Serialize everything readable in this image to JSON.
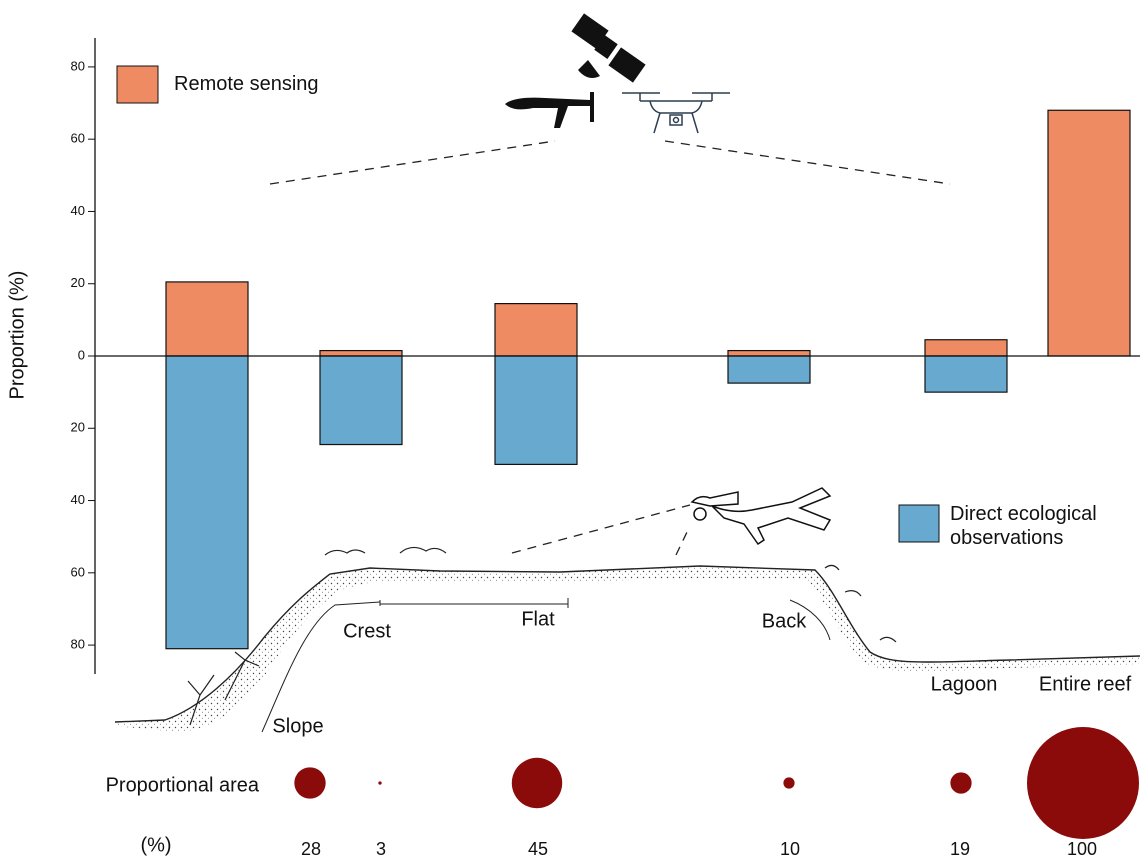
{
  "chart_data": {
    "type": "bar",
    "y_label": "Proportion (%)",
    "categories": [
      "Slope",
      "Crest",
      "Flat",
      "Back",
      "Lagoon",
      "Entire reef"
    ],
    "series": [
      {
        "name": "Remote sensing",
        "color": "#ee8b63",
        "values": [
          20.5,
          1.5,
          14.5,
          1.5,
          4.5,
          68
        ]
      },
      {
        "name": "Direct ecological observations",
        "color": "#67a9cf",
        "values": [
          -81,
          -24.5,
          -30,
          -7.5,
          -10,
          null
        ]
      }
    ],
    "ylim": [
      -88,
      88
    ],
    "yticks": [
      {
        "value": -80,
        "label": "80"
      },
      {
        "value": -60,
        "label": "60"
      },
      {
        "value": -40,
        "label": "40"
      },
      {
        "value": -20,
        "label": "20"
      },
      0,
      20,
      40,
      60,
      80
    ],
    "proportional_area": {
      "label": "Proportional area",
      "unit_label": "(%)",
      "values": [
        28,
        3,
        45,
        10,
        19,
        100
      ],
      "color": "#8b0a0a"
    }
  }
}
